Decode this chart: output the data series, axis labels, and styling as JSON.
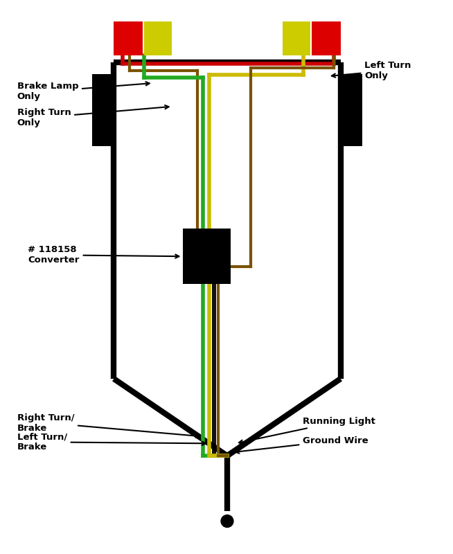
{
  "bg_color": "#ffffff",
  "wire_colors": {
    "red": "#cc0000",
    "green": "#22aa22",
    "yellow": "#ccbb00",
    "brown": "#7a5200",
    "black": "#000000"
  },
  "lamp_colors": {
    "red": "#dd0000",
    "yellow": "#cccc00"
  },
  "labels": {
    "brake_lamp": "Brake Lamp\nOnly",
    "right_turn": "Right Turn\nOnly",
    "left_turn": "Left Turn\nOnly",
    "converter": "# 118158\nConverter",
    "right_turn_brake": "Right Turn/\nBrake",
    "left_turn_brake": "Left Turn/\nBrake",
    "running_light": "Running Light",
    "ground_wire": "Ground Wire"
  },
  "body_lw": 6,
  "wire_lw": 4
}
